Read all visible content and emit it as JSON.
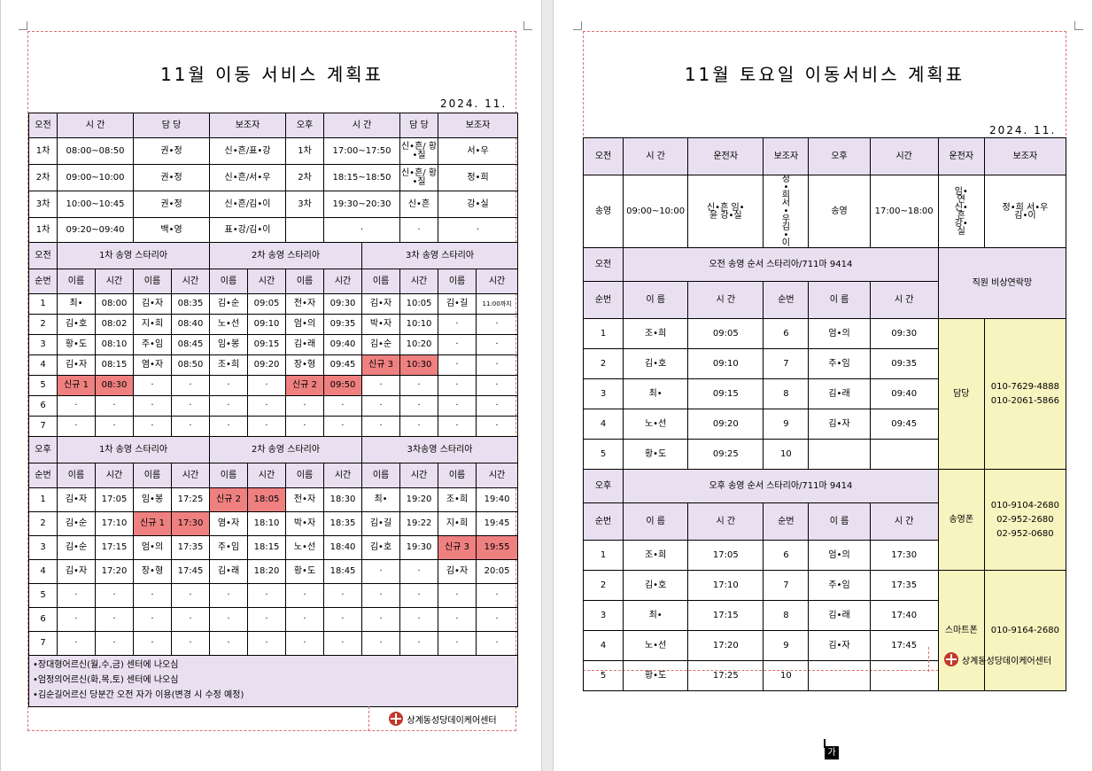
{
  "page1": {
    "title": "11월 이동 서비스 계획표",
    "date": "2024. 11.",
    "top_headers": [
      "오전",
      "시 간",
      "담 당",
      "보조자",
      "오후",
      "시 간",
      "담 당",
      "보조자"
    ],
    "top_rows": [
      [
        "1차",
        "08:00~08:50",
        "권•정",
        "신•흔/표•강",
        "1차",
        "17:00~17:50",
        "신•흔/ 황•질",
        "서•우"
      ],
      [
        "2차",
        "09:00~10:00",
        "권•정",
        "신•흔/서•우",
        "2차",
        "18:15~18:50",
        "신•흔/ 황•질",
        "정•희"
      ],
      [
        "3차",
        "10:00~10:45",
        "권•정",
        "신•흔/김•이",
        "3차",
        "19:30~20:30",
        "신•흔",
        "강•실"
      ],
      [
        "1차",
        "09:20~09:40",
        "백•영",
        "표•강/김•이",
        "",
        "·",
        "·",
        "·"
      ]
    ],
    "am_section": {
      "label": "오전",
      "groups": [
        "1차 송영 스타리아",
        "2차 송영 스타리아",
        "3차 송영 스타리아"
      ]
    },
    "pm_section": {
      "label": "오후",
      "groups": [
        "1차 송영 스타리아",
        "2차 송영 스타리아",
        "3차송영 스타리아"
      ]
    },
    "sub_headers": [
      "순번",
      "이름",
      "시간",
      "이름",
      "시간",
      "이름",
      "시간",
      "이름",
      "시간",
      "이름",
      "시간",
      "이름",
      "시간"
    ],
    "am_rows": [
      [
        "1",
        "최•",
        "08:00",
        "김•자",
        "08:35",
        "김•순",
        "09:05",
        "전•자",
        "09:30",
        "김•자",
        "10:05",
        "김•길",
        "11:00까지"
      ],
      [
        "2",
        "김•호",
        "08:02",
        "지•희",
        "08:40",
        "노•선",
        "09:10",
        "엄•의",
        "09:35",
        "박•자",
        "10:10",
        "·",
        "·"
      ],
      [
        "3",
        "황•도",
        "08:10",
        "주•임",
        "08:45",
        "임•봉",
        "09:15",
        "김•래",
        "09:40",
        "김•순",
        "10:20",
        "·",
        "·"
      ],
      [
        "4",
        "김•자",
        "08:15",
        "염•자",
        "08:50",
        "조•희",
        "09:20",
        "장•형",
        "09:45",
        "신규 3",
        "10:30",
        "·",
        "·"
      ],
      [
        "5",
        "신규 1",
        "08:30",
        "·",
        "·",
        "·",
        "·",
        "신규 2",
        "09:50",
        "·",
        "·",
        "·",
        "·"
      ],
      [
        "6",
        "·",
        "·",
        "·",
        "·",
        "·",
        "·",
        "·",
        "·",
        "·",
        "·",
        "·",
        "·"
      ],
      [
        "7",
        "·",
        "·",
        "·",
        "·",
        "·",
        "·",
        "·",
        "·",
        "·",
        "·",
        "·",
        "·"
      ]
    ],
    "pm_rows": [
      [
        "1",
        "김•자",
        "17:05",
        "임•봉",
        "17:25",
        "신규 2",
        "18:05",
        "전•자",
        "18:30",
        "최•",
        "19:20",
        "조•희",
        "19:40"
      ],
      [
        "2",
        "김•순",
        "17:10",
        "신규 1",
        "17:30",
        "염•자",
        "18:10",
        "박•자",
        "18:35",
        "김•길",
        "19:22",
        "지•희",
        "19:45"
      ],
      [
        "3",
        "김•순",
        "17:15",
        "엄•의",
        "17:35",
        "주•임",
        "18:15",
        "노•선",
        "18:40",
        "김•호",
        "19:30",
        "신규 3",
        "19:55"
      ],
      [
        "4",
        "김•자",
        "17:20",
        "장•형",
        "17:45",
        "김•래",
        "18:20",
        "황•도",
        "18:45",
        "·",
        "·",
        "김•자",
        "20:05"
      ],
      [
        "5",
        "·",
        "·",
        "·",
        "·",
        "·",
        "·",
        "·",
        "·",
        "·",
        "·",
        "·",
        "·"
      ],
      [
        "6",
        "·",
        "·",
        "·",
        "·",
        "·",
        "·",
        "·",
        "·",
        "·",
        "·",
        "·",
        "·"
      ],
      [
        "7",
        "·",
        "·",
        "·",
        "·",
        "·",
        "·",
        "·",
        "·",
        "·",
        "·",
        "·",
        "·"
      ]
    ],
    "notes": [
      "•장대형어르신(월,수,금) 센터에 나오심",
      "•엄정의어르신(화,목,토) 센터에 나오심",
      "•김순길어르신 당분간 오전 자가 이용(변경 시 수정 예정)"
    ],
    "footer": "상계동성당데이케어센터"
  },
  "page2": {
    "title": "11월 토요일 이동서비스 계획표",
    "date": "2024. 11.",
    "top_headers": [
      "오전",
      "시 간",
      "운전자",
      "보조자",
      "오후",
      "시간",
      "운전자",
      "보조자"
    ],
    "top_row": [
      "송영",
      "09:00~10:00",
      "신•흔 임•윤 강•실",
      "정•희 서•우 김•이",
      "송영",
      "17:00~18:00",
      "임•연 신•흔 강•실",
      "정•희 서•우 김•이"
    ],
    "am_label": "오전",
    "am_route": "오전 송영 순서 스타리아/711마 9414",
    "pm_label": "오후",
    "pm_route": "오후 송영 순서 스타리아/711마 9414",
    "contact_title": "직원 비상연락망",
    "sub_headers": [
      "순번",
      "이 름",
      "시 간",
      "순번",
      "이 름",
      "시 간"
    ],
    "am_rows": [
      [
        "1",
        "조•희",
        "09:05",
        "6",
        "엄•의",
        "09:30"
      ],
      [
        "2",
        "김•호",
        "09:10",
        "7",
        "주•임",
        "09:35"
      ],
      [
        "3",
        "최•",
        "09:15",
        "8",
        "김•래",
        "09:40"
      ],
      [
        "4",
        "노•선",
        "09:20",
        "9",
        "김•자",
        "09:45"
      ],
      [
        "5",
        "황•도",
        "09:25",
        "10",
        "",
        ""
      ]
    ],
    "pm_rows": [
      [
        "1",
        "조•희",
        "17:05",
        "6",
        "엄•의",
        "17:30"
      ],
      [
        "2",
        "김•호",
        "17:10",
        "7",
        "주•임",
        "17:35"
      ],
      [
        "3",
        "최•",
        "17:15",
        "8",
        "김•래",
        "17:40"
      ],
      [
        "4",
        "노•선",
        "17:20",
        "9",
        "김•자",
        "17:45"
      ],
      [
        "5",
        "황•도",
        "17:25",
        "10",
        "",
        ""
      ]
    ],
    "contacts": [
      {
        "label": "담당",
        "numbers": "010-7629-4888\n010-2061-5866"
      },
      {
        "label": "송영폰",
        "numbers": "010-9104-2680\n02-952-2680\n02-952-0680"
      },
      {
        "label": "스마트폰",
        "numbers": "010-9164-2680"
      }
    ],
    "footer": "상계동성당데이케어센터"
  },
  "status": {
    "ime_char": "가"
  },
  "colors": {
    "header": "#e8dff0",
    "highlight": "#ee8080",
    "contact": "#f8f4c0"
  }
}
